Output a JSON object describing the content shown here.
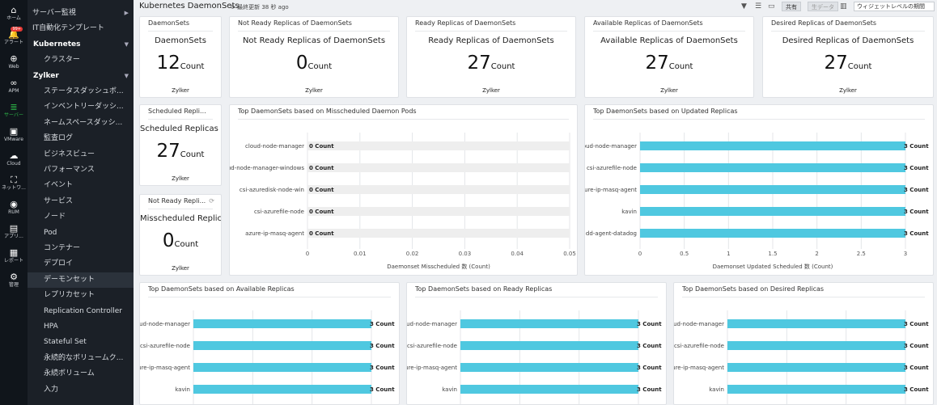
{
  "rail": [
    {
      "icon": "⌂",
      "label": "ホーム",
      "name": "home-icon"
    },
    {
      "icon": "🔔",
      "label": "アラート",
      "name": "alert-icon",
      "badge": "99+"
    },
    {
      "icon": "⊕",
      "label": "Web",
      "name": "web-icon"
    },
    {
      "icon": "∞",
      "label": "APM",
      "name": "apm-icon"
    },
    {
      "icon": "≣",
      "label": "サーバー",
      "name": "server-icon",
      "active": true
    },
    {
      "icon": "▣",
      "label": "VMware",
      "name": "vmware-icon"
    },
    {
      "icon": "☁",
      "label": "Cloud",
      "name": "cloud-icon"
    },
    {
      "icon": "⛶",
      "label": "ネットワ...",
      "name": "network-icon"
    },
    {
      "icon": "◉",
      "label": "RUM",
      "name": "rum-icon"
    },
    {
      "icon": "▤",
      "label": "アプリ...",
      "name": "apps-icon"
    },
    {
      "icon": "▦",
      "label": "レポート",
      "name": "report-icon"
    },
    {
      "icon": "⚙",
      "label": "管理",
      "name": "admin-icon"
    }
  ],
  "nav": [
    {
      "label": "サーバー監視",
      "level": 0,
      "caret": "▶"
    },
    {
      "label": "IT自動化テンプレート",
      "level": 0
    },
    {
      "label": "Kubernetes",
      "level": 1,
      "caret": "▼"
    },
    {
      "label": "クラスター",
      "level": 2
    },
    {
      "label": "Zylker",
      "level": 1,
      "caret": "▼"
    },
    {
      "label": "ステータスダッシュボ...",
      "level": 2
    },
    {
      "label": "インベントリーダッシ...",
      "level": 2
    },
    {
      "label": "ネームスペースダッシ...",
      "level": 2
    },
    {
      "label": "監査ログ",
      "level": 2
    },
    {
      "label": "ビジネスビュー",
      "level": 2
    },
    {
      "label": "パフォーマンス",
      "level": 2
    },
    {
      "label": "イベント",
      "level": 2
    },
    {
      "label": "サービス",
      "level": 2
    },
    {
      "label": "ノード",
      "level": 2
    },
    {
      "label": "Pod",
      "level": 2
    },
    {
      "label": "コンテナー",
      "level": 2
    },
    {
      "label": "デプロイ",
      "level": 2
    },
    {
      "label": "デーモンセット",
      "level": 2,
      "selected": true
    },
    {
      "label": "レプリカセット",
      "level": 2
    },
    {
      "label": "Replication Controller",
      "level": 2
    },
    {
      "label": "HPA",
      "level": 2
    },
    {
      "label": "Stateful Set",
      "level": 2
    },
    {
      "label": "永続的なボリュームク...",
      "level": 2
    },
    {
      "label": "永続ボリューム",
      "level": 2
    },
    {
      "label": "入力",
      "level": 2
    }
  ],
  "header": {
    "title": "Kubernetes DaemonSets",
    "refresh": "最終更新 38 秒 ago",
    "share": "共有",
    "data_btn": "生データ",
    "widget_level": "ウィジェットレベルの期間",
    "icons": [
      "filter-icon",
      "list-icon",
      "monitor-icon"
    ]
  },
  "kpis": [
    {
      "title": "DaemonSets",
      "label": "DaemonSets",
      "value": "12",
      "unit": "Count",
      "foot": "Zylker"
    },
    {
      "title": "Not Ready Replicas of DaemonSets",
      "label": "Not Ready Replicas of DaemonSets",
      "value": "0",
      "unit": "Count",
      "foot": "Zylker"
    },
    {
      "title": "Ready Replicas of DaemonSets",
      "label": "Ready Replicas of DaemonSets",
      "value": "27",
      "unit": "Count",
      "foot": "Zylker"
    },
    {
      "title": "Available Replicas of DaemonSets",
      "label": "Available Replicas of DaemonSets",
      "value": "27",
      "unit": "Count",
      "foot": "Zylker"
    },
    {
      "title": "Desired Replicas of DaemonSets",
      "label": "Desired Replicas of DaemonSets",
      "value": "27",
      "unit": "Count",
      "foot": "Zylker"
    },
    {
      "title": "Scheduled Repli...",
      "label": "Scheduled Replicas of",
      "value": "27",
      "unit": "Count",
      "foot": "Zylker"
    },
    {
      "title": "Not Ready Repli...",
      "label": "Misscheduled Replica",
      "value": "0",
      "unit": "Count",
      "foot": "Zylker",
      "refresh_icon": "⟳"
    }
  ],
  "chart_data": [
    {
      "type": "bar",
      "orientation": "horizontal",
      "title": "Top DaemonSets based on Misscheduled Daemon Pods",
      "categories": [
        "cloud-node-manager",
        "cloud-node-manager-windows",
        "csi-azuredisk-node-win",
        "csi-azurefile-node",
        "azure-ip-masq-agent"
      ],
      "values": [
        0,
        0,
        0,
        0,
        0
      ],
      "data_labels": [
        "0 Count",
        "0 Count",
        "0 Count",
        "0 Count",
        "0 Count"
      ],
      "xlabel": "Daemonset Misscheduled 数 (Count)",
      "xticks": [
        "0",
        "0.01",
        "0.02",
        "0.03",
        "0.04",
        "0.05"
      ],
      "xlim": [
        0,
        0.05
      ]
    },
    {
      "type": "bar",
      "orientation": "horizontal",
      "title": "Top DaemonSets based on Updated Replicas",
      "categories": [
        "cloud-node-manager",
        "csi-azurefile-node",
        "azure-ip-masq-agent",
        "kavin",
        "dd-agent-datadog"
      ],
      "values": [
        3,
        3,
        3,
        3,
        3
      ],
      "data_labels": [
        "3 Count",
        "3 Count",
        "3 Count",
        "3 Count",
        "3 Count"
      ],
      "xlabel": "Daemonset Updated Scheduled 数 (Count)",
      "xticks": [
        "0",
        "0.5",
        "1",
        "1.5",
        "2",
        "2.5",
        "3"
      ],
      "xlim": [
        0,
        3
      ]
    },
    {
      "type": "bar",
      "orientation": "horizontal",
      "title": "Top DaemonSets based on Available Replicas",
      "categories": [
        "cloud-node-manager",
        "csi-azurefile-node",
        "azure-ip-masq-agent",
        "kavin"
      ],
      "values": [
        3,
        3,
        3,
        3
      ],
      "data_labels": [
        "3 Count",
        "3 Count",
        "3 Count",
        "3 Count"
      ],
      "xlim": [
        0,
        3
      ]
    },
    {
      "type": "bar",
      "orientation": "horizontal",
      "title": "Top DaemonSets based on Ready Replicas",
      "categories": [
        "cloud-node-manager",
        "csi-azurefile-node",
        "azure-ip-masq-agent",
        "kavin"
      ],
      "values": [
        3,
        3,
        3,
        3
      ],
      "data_labels": [
        "3 Count",
        "3 Count",
        "3 Count",
        "3 Count"
      ],
      "xlim": [
        0,
        3
      ]
    },
    {
      "type": "bar",
      "orientation": "horizontal",
      "title": "Top DaemonSets based on Desired Replicas",
      "categories": [
        "cloud-node-manager",
        "csi-azurefile-node",
        "azure-ip-masq-agent",
        "kavin"
      ],
      "values": [
        3,
        3,
        3,
        3
      ],
      "data_labels": [
        "3 Count",
        "3 Count",
        "3 Count",
        "3 Count"
      ],
      "xlim": [
        0,
        3
      ]
    }
  ],
  "colors": {
    "bar": "#4fc8e0",
    "track": "#eeeeee",
    "grid": "#e4e6e9",
    "accent": "#2ebd4a"
  }
}
